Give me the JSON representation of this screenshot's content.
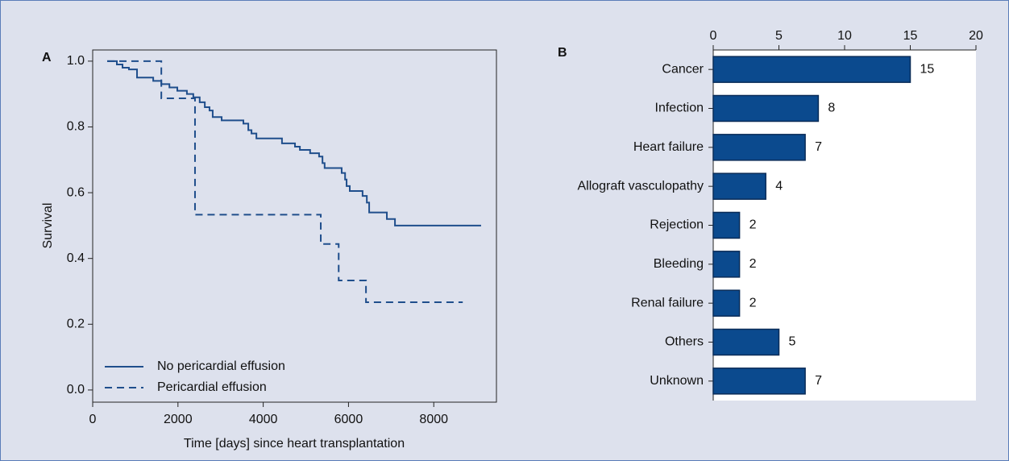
{
  "chart_data": [
    {
      "type": "line",
      "step": true,
      "panel_label": "A",
      "x_label": "Time [days] since heart transplantation",
      "y_label": "Survival",
      "xlim": [
        0,
        9470
      ],
      "xticks": [
        0,
        2000,
        4000,
        6000,
        8000
      ],
      "ylim": [
        -0.037,
        1.034
      ],
      "yticks": [
        {
          "value": 0,
          "label": "0.0"
        },
        0.2,
        0.4,
        0.6,
        0.8,
        {
          "value": 1,
          "label": "1.0"
        }
      ],
      "legend": "lower left",
      "series": [
        {
          "name": "No pericardial effusion",
          "color": "#1f4e8c",
          "dash": "solid",
          "x": [
            340,
            567,
            700,
            850,
            1040,
            1420,
            1610,
            1800,
            1985,
            2210,
            2360,
            2510,
            2630,
            2740,
            2815,
            3025,
            3535,
            3650,
            3725,
            3840,
            4440,
            4745,
            4860,
            5100,
            5310,
            5390,
            5440,
            5840,
            5920,
            5955,
            6030,
            6330,
            6430,
            6485,
            6900,
            7090,
            9110
          ],
          "values": [
            1.0,
            0.99,
            0.98,
            0.975,
            0.95,
            0.94,
            0.93,
            0.92,
            0.91,
            0.9,
            0.89,
            0.875,
            0.86,
            0.85,
            0.83,
            0.82,
            0.81,
            0.79,
            0.78,
            0.765,
            0.75,
            0.74,
            0.73,
            0.72,
            0.71,
            0.69,
            0.675,
            0.66,
            0.64,
            0.62,
            0.605,
            0.59,
            0.57,
            0.54,
            0.52,
            0.5,
            0.5
          ]
        },
        {
          "name": "Pericardial effusion",
          "color": "#1f4e8c",
          "dash": "dashed",
          "x": [
            340,
            1610,
            2400,
            5350,
            5770,
            6410,
            8680
          ],
          "values": [
            1.0,
            0.887,
            0.533,
            0.444,
            0.333,
            0.267,
            0.267
          ]
        }
      ]
    },
    {
      "type": "hbar",
      "panel_label": "B",
      "categories": [
        "Cancer",
        "Infection",
        "Heart failure",
        "Allograft vasculopathy",
        "Rejection",
        "Bleeding",
        "Renal failure",
        "Others",
        "Unknown"
      ],
      "values": [
        15,
        8,
        7,
        4,
        2,
        2,
        2,
        5,
        7
      ],
      "color": "#0b4a8e",
      "xlim": [
        0,
        20
      ],
      "xticks": [
        0,
        5,
        10,
        15,
        20
      ]
    }
  ]
}
